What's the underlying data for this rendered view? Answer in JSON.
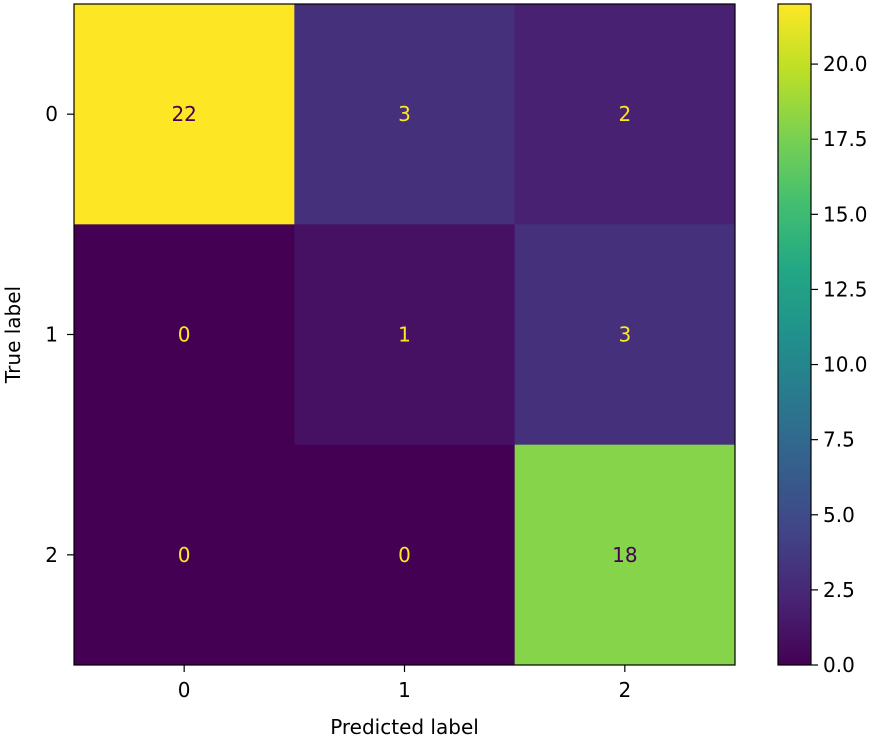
{
  "chart_data": {
    "type": "heatmap",
    "title": "",
    "xlabel": "Predicted label",
    "ylabel": "True label",
    "x_categories": [
      "0",
      "1",
      "2"
    ],
    "y_categories": [
      "0",
      "1",
      "2"
    ],
    "matrix": [
      [
        22,
        3,
        2
      ],
      [
        0,
        1,
        3
      ],
      [
        0,
        0,
        18
      ]
    ],
    "colormap": "viridis",
    "colorbar": {
      "range": [
        0,
        22
      ],
      "ticks": [
        0.0,
        2.5,
        5.0,
        7.5,
        10.0,
        12.5,
        15.0,
        17.5,
        20.0
      ],
      "tick_labels": [
        "0.0",
        "2.5",
        "5.0",
        "7.5",
        "10.0",
        "12.5",
        "15.0",
        "17.5",
        "20.0"
      ]
    },
    "text_color_light": "#fde725",
    "text_color_dark": "#440154",
    "grid": false
  }
}
